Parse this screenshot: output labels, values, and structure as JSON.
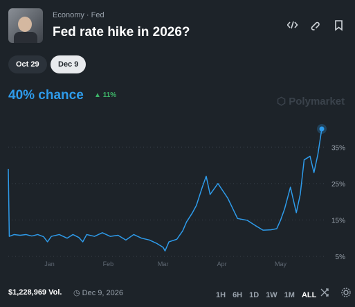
{
  "header": {
    "breadcrumb": [
      "Economy",
      "Fed"
    ],
    "title": "Fed rate hike in 2026?"
  },
  "date_tabs": [
    "Oct 29",
    "Dec 9"
  ],
  "summary": {
    "chance": "40% chance",
    "change": "11%"
  },
  "watermark": "Polymarket",
  "chart_data": {
    "type": "line",
    "x": [
      0,
      0.5,
      3,
      6,
      9,
      12,
      15,
      18,
      20,
      22,
      26,
      30,
      33,
      36,
      38,
      40,
      44,
      48,
      52,
      56,
      60,
      64,
      68,
      72,
      76,
      79,
      80,
      82,
      86,
      89,
      91,
      94,
      96,
      99,
      101,
      103,
      107,
      112,
      117,
      122,
      126,
      130,
      134,
      137,
      139,
      141,
      144,
      147,
      149,
      151,
      154,
      156,
      158,
      160
    ],
    "series": [
      {
        "color": "#2e9bea",
        "values": [
          29,
          10.5,
          11,
          10.8,
          11,
          10.6,
          11,
          10.4,
          9,
          10.5,
          11,
          10,
          11,
          10.2,
          9,
          11,
          10.5,
          11.5,
          10.5,
          10.8,
          9.5,
          11,
          10,
          9.5,
          8.5,
          7.5,
          6.5,
          9,
          9.7,
          12,
          14.5,
          17,
          19,
          24,
          27,
          22,
          25,
          21,
          15.4,
          14.9,
          13.5,
          12.2,
          12.3,
          12.6,
          15,
          18,
          24,
          17,
          22,
          31.5,
          32.5,
          28,
          33,
          40
        ]
      }
    ],
    "xlim": [
      0,
      160
    ],
    "xticks": [
      {
        "value": 21,
        "label": "Jan"
      },
      {
        "value": 51,
        "label": "Feb"
      },
      {
        "value": 79,
        "label": "Mar"
      },
      {
        "value": 109,
        "label": "Apr"
      },
      {
        "value": 139,
        "label": "May"
      }
    ],
    "ylim": [
      3,
      40
    ],
    "yticks": [
      {
        "value": 5,
        "label": "5%"
      },
      {
        "value": 15,
        "label": "15%"
      },
      {
        "value": 25,
        "label": "25%"
      },
      {
        "value": 35,
        "label": "35%"
      }
    ],
    "grid": true
  },
  "footer": {
    "volume": "$1,228,969 Vol.",
    "date": "Dec 9, 2026",
    "ranges": [
      "1H",
      "6H",
      "1D",
      "1W",
      "1M",
      "ALL"
    ]
  }
}
